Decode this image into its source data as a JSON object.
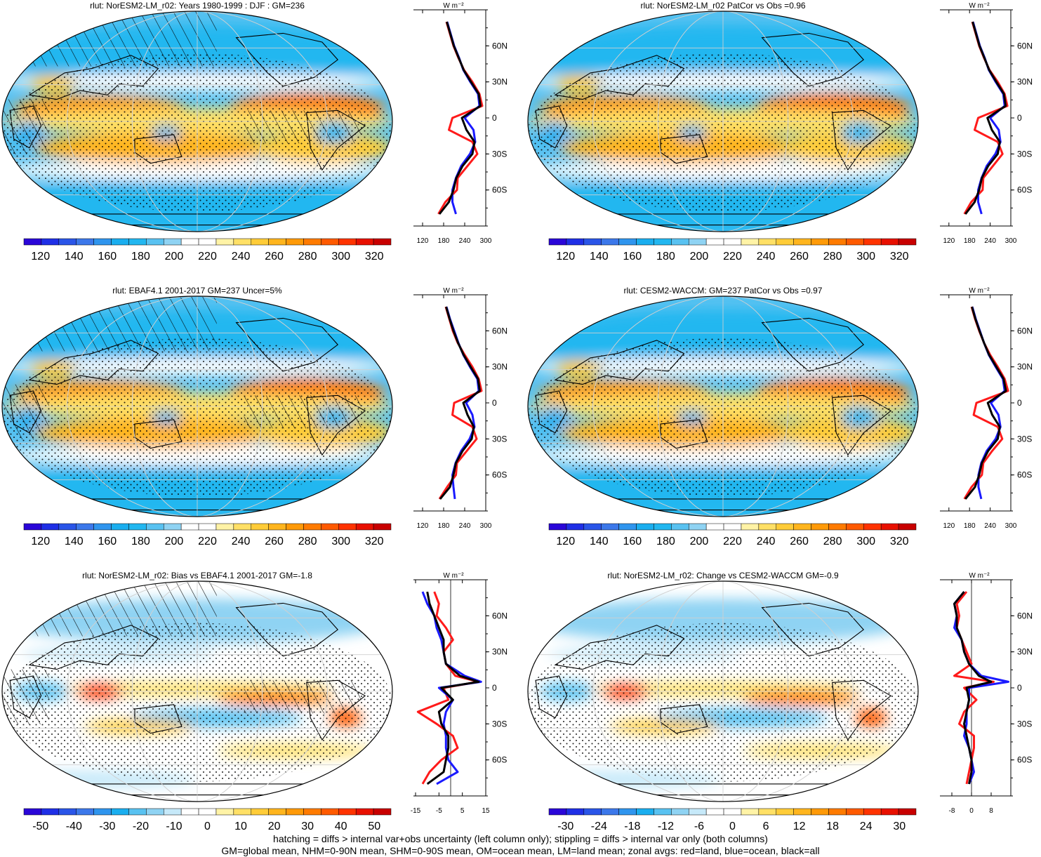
{
  "footnote": {
    "line1": "hatching = diffs > internal var+obs uncertainty (left column only); stippling = diffs > internal var only (both columns)",
    "line2": "GM=global mean, NHM=0-90N mean, SHM=0-90S mean, OM=ocean mean, LM=land mean; zonal avgs: red=land, blue=ocean, black=all"
  },
  "zonal_series_legend": {
    "land": "red",
    "ocean": "blue",
    "all": "black"
  },
  "zonal_unit": "W m⁻²",
  "latitude_ticks": [
    "60N",
    "30N",
    "0",
    "30S",
    "60S"
  ],
  "chart_data": [
    {
      "type": "heatmap",
      "title": "rlut: NorESM2-LM_r02: Years 1980-1999 : DJF : GM=236",
      "colorbar_ticks": [
        "120",
        "140",
        "160",
        "180",
        "200",
        "220",
        "240",
        "260",
        "280",
        "300",
        "320"
      ],
      "colorbar_range": [
        110,
        330
      ],
      "has_hatching": true,
      "zonal_x_ticks": [
        "120",
        "180",
        "240",
        "300"
      ],
      "zonal_xlim": [
        100,
        300
      ],
      "zonal": {
        "lat": [
          80,
          70,
          60,
          50,
          40,
          30,
          20,
          10,
          0,
          -10,
          -20,
          -30,
          -40,
          -50,
          -60,
          -70,
          -80
        ],
        "land": [
          188,
          198,
          208,
          222,
          238,
          262,
          282,
          290,
          205,
          195,
          262,
          276,
          248,
          220,
          218,
          185,
          165
        ],
        "ocean": [
          190,
          200,
          210,
          224,
          236,
          256,
          278,
          282,
          240,
          265,
          270,
          255,
          230,
          215,
          205,
          205,
          215
        ],
        "all": [
          189,
          199,
          209,
          223,
          237,
          258,
          280,
          285,
          232,
          245,
          268,
          262,
          234,
          216,
          208,
          195,
          168
        ]
      }
    },
    {
      "type": "heatmap",
      "title": "rlut: NorESM2-LM_r02 PatCor vs Obs =0.96",
      "colorbar_ticks": [
        "120",
        "140",
        "160",
        "180",
        "200",
        "220",
        "240",
        "260",
        "280",
        "300",
        "320"
      ],
      "colorbar_range": [
        110,
        330
      ],
      "has_hatching": false,
      "zonal_x_ticks": [
        "120",
        "180",
        "240",
        "300"
      ],
      "zonal_xlim": [
        100,
        300
      ],
      "zonal": {
        "lat": [
          80,
          70,
          60,
          50,
          40,
          30,
          20,
          10,
          0,
          -10,
          -20,
          -30,
          -40,
          -50,
          -60,
          -70,
          -80
        ],
        "land": [
          188,
          198,
          208,
          222,
          238,
          262,
          282,
          290,
          205,
          195,
          262,
          276,
          248,
          220,
          218,
          185,
          165
        ],
        "ocean": [
          190,
          200,
          210,
          224,
          236,
          256,
          278,
          282,
          240,
          265,
          270,
          255,
          230,
          215,
          205,
          205,
          215
        ],
        "all": [
          189,
          199,
          209,
          223,
          237,
          258,
          280,
          285,
          232,
          245,
          268,
          262,
          234,
          216,
          208,
          195,
          168
        ]
      }
    },
    {
      "type": "heatmap",
      "title": "rlut: EBAF4.1 2001-2017 GM=237 Uncer=5%",
      "colorbar_ticks": [
        "120",
        "140",
        "160",
        "180",
        "200",
        "220",
        "240",
        "260",
        "280",
        "300",
        "320"
      ],
      "colorbar_range": [
        110,
        330
      ],
      "has_hatching": true,
      "zonal_x_ticks": [
        "120",
        "180",
        "240",
        "300"
      ],
      "zonal_xlim": [
        100,
        300
      ],
      "zonal": {
        "lat": [
          80,
          70,
          60,
          50,
          40,
          30,
          20,
          10,
          0,
          -10,
          -20,
          -30,
          -40,
          -50,
          -60,
          -70,
          -80
        ],
        "land": [
          186,
          196,
          206,
          220,
          240,
          262,
          280,
          288,
          210,
          205,
          262,
          274,
          246,
          218,
          215,
          190,
          168
        ],
        "ocean": [
          188,
          198,
          210,
          222,
          236,
          255,
          276,
          280,
          244,
          262,
          268,
          254,
          230,
          214,
          205,
          208,
          212
        ],
        "all": [
          187,
          197,
          208,
          221,
          237,
          257,
          278,
          283,
          236,
          248,
          266,
          260,
          234,
          215,
          208,
          198,
          170
        ]
      }
    },
    {
      "type": "heatmap",
      "title": "rlut: CESM2-WACCM: GM=237 PatCor vs Obs =0.97",
      "colorbar_ticks": [
        "120",
        "140",
        "160",
        "180",
        "200",
        "220",
        "240",
        "260",
        "280",
        "300",
        "320"
      ],
      "colorbar_range": [
        110,
        330
      ],
      "has_hatching": false,
      "zonal_x_ticks": [
        "120",
        "180",
        "240",
        "300"
      ],
      "zonal_xlim": [
        100,
        300
      ],
      "zonal": {
        "lat": [
          80,
          70,
          60,
          50,
          40,
          30,
          20,
          10,
          0,
          -10,
          -20,
          -30,
          -40,
          -50,
          -60,
          -70,
          -80
        ],
        "land": [
          186,
          196,
          208,
          222,
          240,
          262,
          282,
          292,
          200,
          192,
          262,
          275,
          246,
          220,
          216,
          186,
          165
        ],
        "ocean": [
          188,
          198,
          210,
          222,
          236,
          256,
          277,
          282,
          242,
          264,
          270,
          256,
          230,
          214,
          206,
          206,
          214
        ],
        "all": [
          187,
          197,
          209,
          222,
          237,
          258,
          279,
          286,
          233,
          246,
          268,
          262,
          234,
          216,
          208,
          196,
          168
        ]
      }
    },
    {
      "type": "heatmap",
      "title": "rlut: NorESM2-LM_r02: Bias vs EBAF4.1 2001-2017 GM=-1.8",
      "colorbar_ticks": [
        "-50",
        "-40",
        "-30",
        "-20",
        "-10",
        "0",
        "10",
        "20",
        "30",
        "40",
        "50"
      ],
      "colorbar_range": [
        -55,
        55
      ],
      "has_hatching": true,
      "zonal_x_ticks": [
        "-15",
        "-5",
        "5",
        "15"
      ],
      "zonal_xlim": [
        -15,
        15
      ],
      "zonal_zero_line": 0,
      "zonal": {
        "lat": [
          80,
          70,
          60,
          50,
          40,
          30,
          20,
          10,
          5,
          0,
          -10,
          -20,
          -30,
          -40,
          -50,
          -60,
          -70,
          -80
        ],
        "land": [
          -7,
          -5,
          -6,
          -2,
          1,
          -3,
          -2,
          2,
          12,
          -3,
          -1,
          -14,
          -6,
          1,
          3,
          -4,
          -9,
          -12
        ],
        "ocean": [
          -12,
          -10,
          -7,
          -6,
          -4,
          -3,
          -2,
          6,
          13,
          -5,
          1,
          -2,
          -3,
          -2,
          -2,
          -1,
          3,
          -6
        ],
        "all": [
          -10,
          -9,
          -7,
          -5,
          -3,
          -3,
          -2,
          4,
          12,
          -4,
          1,
          -5,
          -4,
          -1,
          -1,
          -2,
          -3,
          -10
        ]
      }
    },
    {
      "type": "heatmap",
      "title": "rlut: NorESM2-LM_r02: Change vs CESM2-WACCM GM=-0.9",
      "colorbar_ticks": [
        "-30",
        "-24",
        "-18",
        "-12",
        "-6",
        "0",
        "6",
        "12",
        "18",
        "24",
        "30"
      ],
      "colorbar_range": [
        -33,
        33
      ],
      "has_hatching": false,
      "zonal_x_ticks": [
        "-8",
        "0",
        "8"
      ],
      "zonal_xlim": [
        -12,
        16
      ],
      "zonal_zero_line": 0,
      "zonal": {
        "lat": [
          80,
          70,
          60,
          50,
          40,
          30,
          20,
          10,
          5,
          0,
          -10,
          -20,
          -30,
          -40,
          -50,
          -60,
          -70,
          -80
        ],
        "land": [
          -2,
          -6,
          -5,
          -6,
          -4,
          -2,
          0,
          -7,
          9,
          -3,
          2,
          -3,
          -5,
          1,
          1,
          0,
          -1,
          -2
        ],
        "ocean": [
          -3,
          -7,
          -6,
          -7,
          -4,
          -3,
          -1,
          4,
          15,
          -1,
          -1,
          -2,
          -2,
          -3,
          -1,
          0,
          1,
          -1
        ],
        "all": [
          -3,
          -7,
          -6,
          -6,
          -4,
          -3,
          -1,
          3,
          8,
          -2,
          -1,
          -2,
          -3,
          -2,
          -1,
          0,
          0,
          -1
        ]
      }
    }
  ]
}
